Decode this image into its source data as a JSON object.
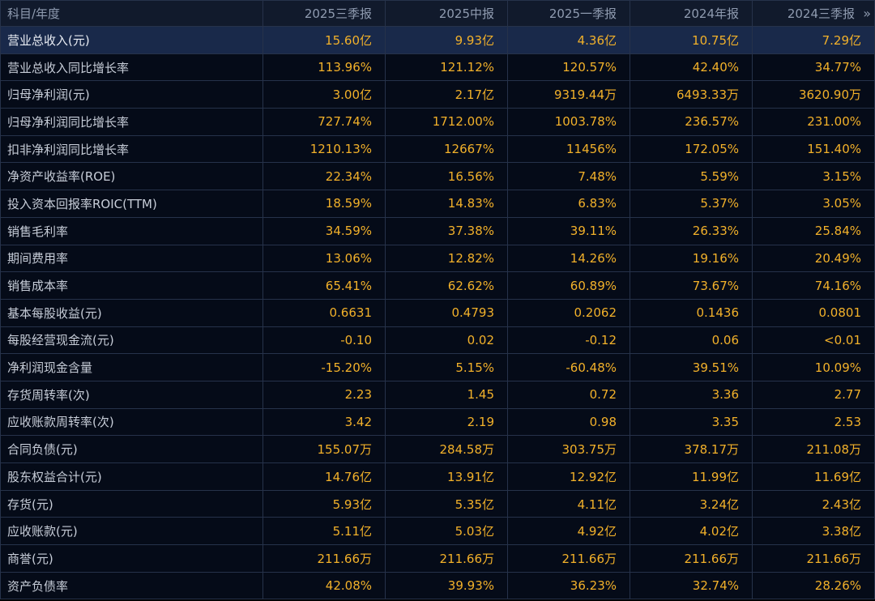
{
  "table": {
    "header_label": "科目/年度",
    "periods": [
      "2025三季报",
      "2025中报",
      "2025一季报",
      "2024年报",
      "2024三季报"
    ],
    "more_icon": "»",
    "rows": [
      {
        "label": "营业总收入(元)",
        "values": [
          "15.60亿",
          "9.93亿",
          "4.36亿",
          "10.75亿",
          "7.29亿"
        ]
      },
      {
        "label": "营业总收入同比增长率",
        "values": [
          "113.96%",
          "121.12%",
          "120.57%",
          "42.40%",
          "34.77%"
        ]
      },
      {
        "label": "归母净利润(元)",
        "values": [
          "3.00亿",
          "2.17亿",
          "9319.44万",
          "6493.33万",
          "3620.90万"
        ]
      },
      {
        "label": "归母净利润同比增长率",
        "values": [
          "727.74%",
          "1712.00%",
          "1003.78%",
          "236.57%",
          "231.00%"
        ]
      },
      {
        "label": "扣非净利润同比增长率",
        "values": [
          "1210.13%",
          "12667%",
          "11456%",
          "172.05%",
          "151.40%"
        ]
      },
      {
        "label": "净资产收益率(ROE)",
        "values": [
          "22.34%",
          "16.56%",
          "7.48%",
          "5.59%",
          "3.15%"
        ]
      },
      {
        "label": "投入资本回报率ROIC(TTM)",
        "values": [
          "18.59%",
          "14.83%",
          "6.83%",
          "5.37%",
          "3.05%"
        ]
      },
      {
        "label": "销售毛利率",
        "values": [
          "34.59%",
          "37.38%",
          "39.11%",
          "26.33%",
          "25.84%"
        ]
      },
      {
        "label": "期间费用率",
        "values": [
          "13.06%",
          "12.82%",
          "14.26%",
          "19.16%",
          "20.49%"
        ]
      },
      {
        "label": "销售成本率",
        "values": [
          "65.41%",
          "62.62%",
          "60.89%",
          "73.67%",
          "74.16%"
        ]
      },
      {
        "label": "基本每股收益(元)",
        "values": [
          "0.6631",
          "0.4793",
          "0.2062",
          "0.1436",
          "0.0801"
        ]
      },
      {
        "label": "每股经营现金流(元)",
        "values": [
          "-0.10",
          "0.02",
          "-0.12",
          "0.06",
          "<0.01"
        ]
      },
      {
        "label": "净利润现金含量",
        "values": [
          "-15.20%",
          "5.15%",
          "-60.48%",
          "39.51%",
          "10.09%"
        ]
      },
      {
        "label": "存货周转率(次)",
        "values": [
          "2.23",
          "1.45",
          "0.72",
          "3.36",
          "2.77"
        ]
      },
      {
        "label": "应收账款周转率(次)",
        "values": [
          "3.42",
          "2.19",
          "0.98",
          "3.35",
          "2.53"
        ]
      },
      {
        "label": "合同负债(元)",
        "values": [
          "155.07万",
          "284.58万",
          "303.75万",
          "378.17万",
          "211.08万"
        ]
      },
      {
        "label": "股东权益合计(元)",
        "values": [
          "14.76亿",
          "13.91亿",
          "12.92亿",
          "11.99亿",
          "11.69亿"
        ]
      },
      {
        "label": "存货(元)",
        "values": [
          "5.93亿",
          "5.35亿",
          "4.11亿",
          "3.24亿",
          "2.43亿"
        ]
      },
      {
        "label": "应收账款(元)",
        "values": [
          "5.11亿",
          "5.03亿",
          "4.92亿",
          "4.02亿",
          "3.38亿"
        ]
      },
      {
        "label": "商誉(元)",
        "values": [
          "211.66万",
          "211.66万",
          "211.66万",
          "211.66万",
          "211.66万"
        ]
      },
      {
        "label": "资产负债率",
        "values": [
          "42.08%",
          "39.93%",
          "36.23%",
          "32.74%",
          "28.26%"
        ]
      }
    ]
  }
}
